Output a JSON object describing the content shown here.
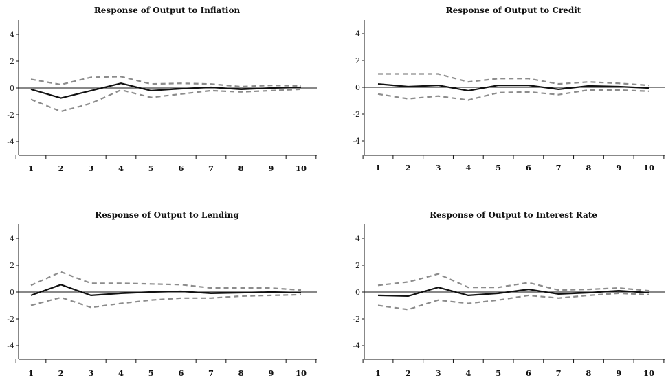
{
  "chart_data": [
    {
      "type": "line",
      "title": "Response of Output to Inflation",
      "x": [
        1,
        2,
        3,
        4,
        5,
        6,
        7,
        8,
        9,
        10
      ],
      "ylim": [
        -5,
        5
      ],
      "yticks": [
        4,
        2,
        0,
        -2,
        -4
      ],
      "ytick_labels": [
        "4",
        "2",
        "0",
        "-2",
        "-4"
      ],
      "series": [
        {
          "role": "response",
          "values": [
            -0.1,
            -0.75,
            -0.2,
            0.35,
            -0.2,
            -0.05,
            0.05,
            -0.1,
            0.0,
            0.05
          ]
        },
        {
          "role": "upper",
          "values": [
            0.65,
            0.25,
            0.8,
            0.85,
            0.3,
            0.35,
            0.3,
            0.1,
            0.2,
            0.15
          ]
        },
        {
          "role": "lower",
          "values": [
            -0.85,
            -1.75,
            -1.15,
            -0.15,
            -0.7,
            -0.45,
            -0.2,
            -0.3,
            -0.2,
            -0.1
          ]
        }
      ]
    },
    {
      "type": "line",
      "title": "Response of Output to Credit",
      "x": [
        1,
        2,
        3,
        4,
        5,
        6,
        7,
        8,
        9,
        10
      ],
      "ylim": [
        -5,
        5
      ],
      "yticks": [
        4,
        2,
        0,
        -2,
        -4
      ],
      "ytick_labels": [
        "4",
        "2",
        "0",
        "-2",
        "-4"
      ],
      "series": [
        {
          "role": "response",
          "values": [
            0.25,
            0.05,
            0.15,
            -0.25,
            0.15,
            0.15,
            -0.15,
            0.1,
            0.05,
            -0.05
          ]
        },
        {
          "role": "upper",
          "values": [
            1.0,
            1.0,
            1.0,
            0.4,
            0.65,
            0.65,
            0.25,
            0.4,
            0.3,
            0.15
          ]
        },
        {
          "role": "lower",
          "values": [
            -0.5,
            -0.85,
            -0.65,
            -0.95,
            -0.4,
            -0.35,
            -0.55,
            -0.2,
            -0.2,
            -0.3
          ]
        }
      ]
    },
    {
      "type": "line",
      "title": "Response of Output to Lending",
      "x": [
        1,
        2,
        3,
        4,
        5,
        6,
        7,
        8,
        9,
        10
      ],
      "ylim": [
        -5,
        5
      ],
      "yticks": [
        4,
        2,
        0,
        -2,
        -4
      ],
      "ytick_labels": [
        "4",
        "2",
        "0",
        "-2",
        "-4"
      ],
      "series": [
        {
          "role": "response",
          "values": [
            -0.25,
            0.55,
            -0.25,
            -0.1,
            0.0,
            0.05,
            -0.1,
            -0.05,
            0.0,
            -0.05
          ]
        },
        {
          "role": "upper",
          "values": [
            0.5,
            1.5,
            0.65,
            0.65,
            0.6,
            0.55,
            0.3,
            0.3,
            0.3,
            0.15
          ]
        },
        {
          "role": "lower",
          "values": [
            -1.0,
            -0.4,
            -1.15,
            -0.85,
            -0.6,
            -0.45,
            -0.45,
            -0.3,
            -0.25,
            -0.2
          ]
        }
      ]
    },
    {
      "type": "line",
      "title": "Response of Output to Interest Rate",
      "x": [
        1,
        2,
        3,
        4,
        5,
        6,
        7,
        8,
        9,
        10
      ],
      "ylim": [
        -5,
        5
      ],
      "yticks": [
        4,
        2,
        0,
        -2,
        -4
      ],
      "ytick_labels": [
        "4",
        "2",
        "0",
        "-2",
        "-4"
      ],
      "series": [
        {
          "role": "response",
          "values": [
            -0.25,
            -0.3,
            0.35,
            -0.25,
            -0.1,
            0.2,
            -0.15,
            -0.05,
            0.1,
            -0.05
          ]
        },
        {
          "role": "upper",
          "values": [
            0.5,
            0.75,
            1.35,
            0.35,
            0.35,
            0.7,
            0.15,
            0.2,
            0.3,
            0.1
          ]
        },
        {
          "role": "lower",
          "values": [
            -1.0,
            -1.3,
            -0.6,
            -0.85,
            -0.6,
            -0.25,
            -0.45,
            -0.25,
            -0.1,
            -0.2
          ]
        }
      ]
    }
  ],
  "colors": {
    "response": "#111111",
    "band": "#8c8c8c",
    "axis": "#111111"
  }
}
